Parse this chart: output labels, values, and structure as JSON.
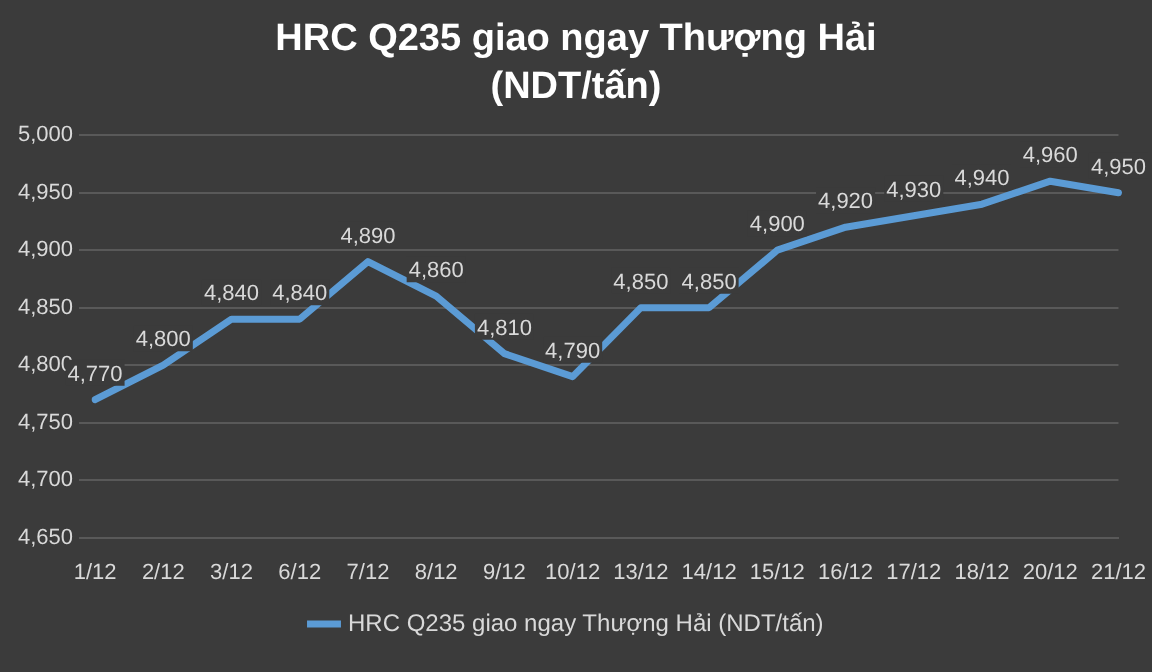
{
  "chart_data": {
    "type": "line",
    "title": "HRC Q235 giao ngay Thượng Hải (NDT/tấn)",
    "categories": [
      "1/12",
      "2/12",
      "3/12",
      "6/12",
      "7/12",
      "8/12",
      "9/12",
      "10/12",
      "13/12",
      "14/12",
      "15/12",
      "16/12",
      "17/12",
      "18/12",
      "20/12",
      "21/12"
    ],
    "series": [
      {
        "name": "HRC Q235 giao ngay Thượng Hải (NDT/tấn)",
        "color": "#5b9bd5",
        "values": [
          4770,
          4800,
          4840,
          4840,
          4890,
          4860,
          4810,
          4790,
          4850,
          4850,
          4900,
          4920,
          4930,
          4940,
          4960,
          4950
        ],
        "value_labels": [
          "4,770",
          "4,800",
          "4,840",
          "4,840",
          "4,890",
          "4,860",
          "4,810",
          "4,790",
          "4,850",
          "4,850",
          "4,900",
          "4,920",
          "4,930",
          "4,940",
          "4,960",
          "4,950"
        ]
      }
    ],
    "ylim": [
      4650,
      5000
    ],
    "yticks": [
      {
        "value": 4650,
        "label": "4,650"
      },
      {
        "value": 4700,
        "label": "4,700"
      },
      {
        "value": 4750,
        "label": "4,750"
      },
      {
        "value": 4800,
        "label": "4,800"
      },
      {
        "value": 4850,
        "label": "4,850"
      },
      {
        "value": 4900,
        "label": "4,900"
      },
      {
        "value": 4950,
        "label": "4,950"
      },
      {
        "value": 5000,
        "label": "5,000"
      }
    ],
    "grid": "y",
    "legend": "bottom",
    "marker": "none",
    "line_style": "solid"
  }
}
